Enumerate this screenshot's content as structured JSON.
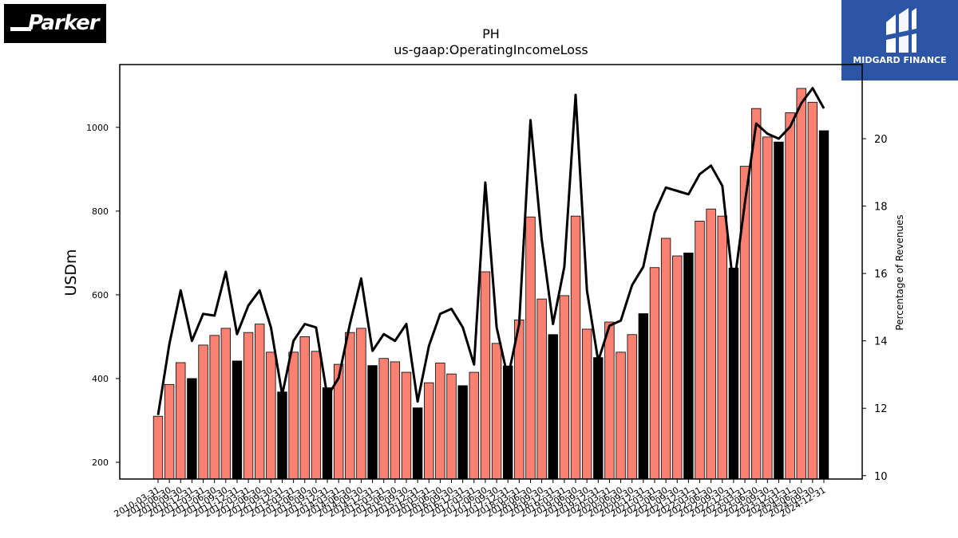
{
  "logos": {
    "left_text": "Parker",
    "right_text": "MIDGARD FINANCE"
  },
  "chart_data": {
    "type": "bar",
    "title": "PH",
    "subtitle": "us-gaap:OperatingIncomeLoss",
    "ylabel": "USDm",
    "y2label": "Percentage of Revenues",
    "ylim": [
      160,
      1150
    ],
    "y2lim": [
      9.9,
      22.2
    ],
    "yticks": [
      200,
      400,
      600,
      800,
      1000
    ],
    "y2ticks": [
      10,
      12,
      14,
      16,
      18,
      20
    ],
    "colors": {
      "quarter": "#fa8072",
      "fiscal_q4": "#000000",
      "line": "#000000"
    },
    "categories": [
      "2010-03-31",
      "2010-06-30",
      "2010-09-30",
      "2010-12-31",
      "2011-03-31",
      "2011-06-30",
      "2011-09-30",
      "2011-12-31",
      "2012-03-31",
      "2012-06-30",
      "2012-09-30",
      "2012-12-31",
      "2013-03-31",
      "2013-06-30",
      "2013-09-30",
      "2013-12-31",
      "2014-03-31",
      "2014-06-30",
      "2014-09-30",
      "2014-12-31",
      "2015-03-31",
      "2015-06-30",
      "2015-09-30",
      "2015-12-31",
      "2016-03-31",
      "2016-06-30",
      "2016-09-30",
      "2016-12-31",
      "2017-03-31",
      "2017-06-30",
      "2017-09-30",
      "2017-12-31",
      "2018-03-31",
      "2018-06-30",
      "2018-09-30",
      "2018-12-31",
      "2019-03-31",
      "2019-06-30",
      "2019-09-30",
      "2019-12-31",
      "2020-03-31",
      "2020-06-30",
      "2020-09-30",
      "2020-12-31",
      "2021-03-31",
      "2021-06-30",
      "2021-09-30",
      "2021-12-31",
      "2022-03-31",
      "2022-06-30",
      "2022-09-30",
      "2022-12-31",
      "2023-03-31",
      "2023-06-30",
      "2023-09-30",
      "2023-12-31",
      "2024-03-31",
      "2024-06-30",
      "2024-09-30",
      "2024-12-31"
    ],
    "series": [
      {
        "values": [
          310,
          386,
          438,
          400,
          480,
          503,
          520,
          442,
          510,
          530,
          463,
          368,
          463,
          500,
          465,
          378,
          434,
          510,
          520,
          431,
          448,
          440,
          415,
          330,
          390,
          437,
          411,
          383,
          415,
          655,
          484,
          430,
          540,
          786,
          590,
          505,
          598,
          788,
          518,
          450,
          535,
          463,
          505,
          555,
          665,
          735,
          693,
          700,
          776,
          805,
          788,
          664,
          907,
          1045,
          977,
          965,
          1035,
          1093,
          1060,
          992
        ]
      },
      {
        "values": [
          11.8,
          13.9,
          15.5,
          14.0,
          14.8,
          14.75,
          16.05,
          14.2,
          15.05,
          15.5,
          14.4,
          12.4,
          14.0,
          14.5,
          14.4,
          12.35,
          12.9,
          14.5,
          15.85,
          13.7,
          14.2,
          14.0,
          14.5,
          12.2,
          13.85,
          14.8,
          14.95,
          14.4,
          13.3,
          18.7,
          14.4,
          12.9,
          14.5,
          20.55,
          17.0,
          14.5,
          16.2,
          21.3,
          15.5,
          13.4,
          14.45,
          14.6,
          15.65,
          16.2,
          17.8,
          18.55,
          18.45,
          18.35,
          18.95,
          19.2,
          18.6,
          15.55,
          18.1,
          20.45,
          20.15,
          20.0,
          20.35,
          21.05,
          21.5,
          20.9
        ]
      }
    ]
  }
}
